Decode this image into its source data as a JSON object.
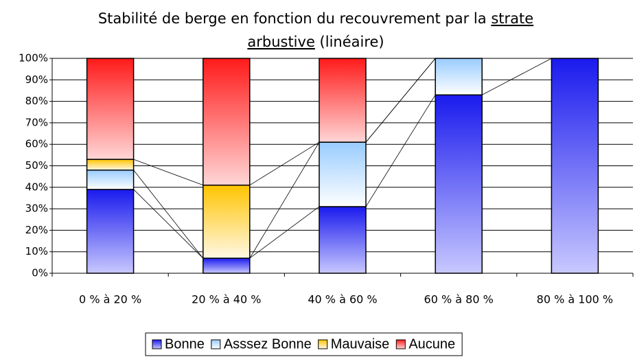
{
  "chart_data": {
    "type": "stacked_bar_100",
    "title_parts": [
      {
        "text": "Stabilité de berge en fonction du recouvrement par la",
        "underline": false
      },
      {
        "text": "strate",
        "underline": true
      },
      {
        "text": "arbustive",
        "underline": true
      },
      {
        "text": "(linéaire)",
        "underline": false
      }
    ],
    "categories": [
      "0 % à 20 %",
      "20 % à 40 %",
      "40 % à 60 %",
      "60 % à 80 %",
      "80 % à 100 %"
    ],
    "series": [
      {
        "name": "Bonne",
        "color": "#1a1aee",
        "light": "#c8c8ff",
        "values": [
          39,
          7,
          31,
          83,
          100
        ]
      },
      {
        "name": "Asssez Bonne",
        "color": "#99ccff",
        "light": "#ffffff",
        "values": [
          9,
          0,
          30,
          17,
          0
        ]
      },
      {
        "name": "Mauvaise",
        "color": "#ffc400",
        "light": "#fff8e6",
        "values": [
          5,
          34,
          0,
          0,
          0
        ]
      },
      {
        "name": "Aucune",
        "color": "#ff1a1a",
        "light": "#ffd6d6",
        "values": [
          47,
          59,
          39,
          0,
          0
        ]
      }
    ],
    "ylim": [
      0,
      100
    ],
    "yticks": [
      {
        "value": 0,
        "label": "0%"
      },
      {
        "value": 10,
        "label": "10%"
      },
      {
        "value": 20,
        "label": "20%"
      },
      {
        "value": 30,
        "label": "30%"
      },
      {
        "value": 40,
        "label": "40%"
      },
      {
        "value": 50,
        "label": "50%"
      },
      {
        "value": 60,
        "label": "60%"
      },
      {
        "value": 70,
        "label": "70%"
      },
      {
        "value": 80,
        "label": "80%"
      },
      {
        "value": 90,
        "label": "90%"
      },
      {
        "value": 100,
        "label": "100%"
      }
    ],
    "grid": true,
    "series_lines": true,
    "legend": "bottom"
  }
}
